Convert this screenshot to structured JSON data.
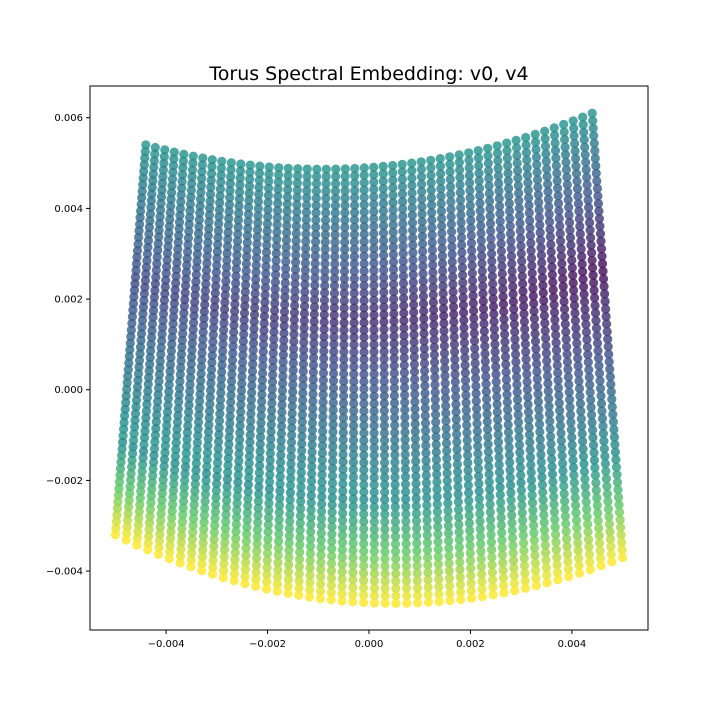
{
  "chart_data": {
    "type": "scatter",
    "title": "Torus Spectral Embedding: v0, v4",
    "xlabel": "",
    "ylabel": "",
    "xlim": [
      -0.0055,
      0.0055
    ],
    "ylim": [
      -0.0053,
      0.0067
    ],
    "xticks": [
      -0.004,
      -0.002,
      0.0,
      0.002,
      0.004
    ],
    "xtick_labels": [
      "−0.004",
      "−0.002",
      "0.000",
      "0.002",
      "0.004"
    ],
    "yticks": [
      -0.004,
      -0.002,
      0.0,
      0.002,
      0.004,
      0.006
    ],
    "ytick_labels": [
      "−0.004",
      "−0.002",
      "0.000",
      "0.002",
      "0.004",
      "0.006"
    ],
    "grid": false,
    "colormap": "viridis",
    "colormap_stops": [
      "#440154",
      "#3b528b",
      "#21918c",
      "#5ec962",
      "#fde725"
    ],
    "point_alpha": 0.8,
    "shape": {
      "columns": 48,
      "rows": 60,
      "x_range": [
        -0.005,
        0.005
      ],
      "top_left_y": 0.0054,
      "top_mid_y": 0.0049,
      "top_right_y": 0.0061,
      "bottom_left_y": -0.0032,
      "bottom_mid_y": -0.0047,
      "bottom_right_y": -0.0037
    }
  }
}
